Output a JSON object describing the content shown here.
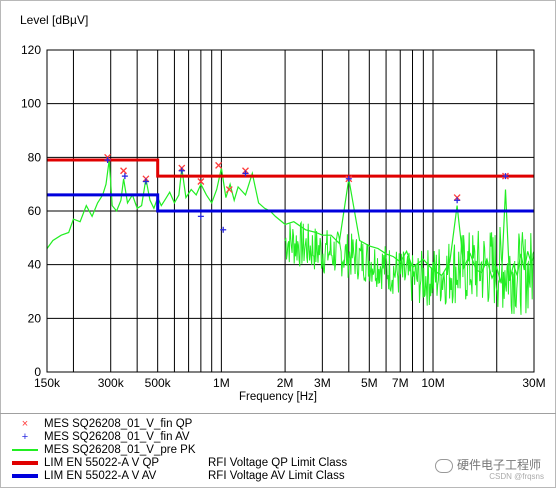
{
  "chart_data": {
    "type": "line",
    "ylabel": "Level [dBµV]",
    "xlabel": "Frequency [Hz]",
    "x_scale": "log",
    "xlim": [
      150000,
      30000000
    ],
    "ylim": [
      0,
      120
    ],
    "yticks": [
      0,
      20,
      40,
      60,
      80,
      100,
      120
    ],
    "xticks": [
      {
        "value": 150000,
        "label": "150k"
      },
      {
        "value": 300000,
        "label": "300k"
      },
      {
        "value": 500000,
        "label": "500k"
      },
      {
        "value": 1000000,
        "label": "1M"
      },
      {
        "value": 2000000,
        "label": "2M"
      },
      {
        "value": 3000000,
        "label": "3M"
      },
      {
        "value": 5000000,
        "label": "5M"
      },
      {
        "value": 7000000,
        "label": "7M"
      },
      {
        "value": 10000000,
        "label": "10M"
      },
      {
        "value": 30000000,
        "label": "30M"
      }
    ],
    "minor_gridlines": [
      200000,
      400000,
      600000,
      700000,
      800000,
      900000,
      4000000,
      6000000,
      8000000,
      9000000,
      20000000
    ],
    "grid": true,
    "series": [
      {
        "name": "MES  SQ26208_01_V_fin QP",
        "kind": "markers",
        "marker": "x",
        "color": "#ff3b3b",
        "x": [
          290000,
          345000,
          440000,
          650000,
          800000,
          970000,
          1090000,
          1300000,
          4000000,
          13000000,
          22000000
        ],
        "y": [
          80,
          75,
          72,
          76,
          71,
          77,
          68,
          75,
          72,
          65,
          73
        ]
      },
      {
        "name": "MES  SQ26208_01_V_fin AV",
        "kind": "markers",
        "marker": "+",
        "color": "#2828e0",
        "x": [
          290000,
          350000,
          440000,
          650000,
          800000,
          1020000,
          1300000,
          4000000,
          13000000,
          22000000
        ],
        "y": [
          79,
          73,
          71,
          75,
          58,
          53,
          74,
          72,
          64,
          73
        ]
      },
      {
        "name": "MES  SQ26208_01_V_pre PK",
        "kind": "line",
        "color": "#22ee22",
        "x": [
          150000,
          160000,
          175000,
          190000,
          200000,
          215000,
          230000,
          245000,
          260000,
          275000,
          285000,
          295000,
          305000,
          320000,
          335000,
          345000,
          360000,
          380000,
          400000,
          420000,
          440000,
          460000,
          480000,
          500000,
          520000,
          540000,
          570000,
          600000,
          630000,
          650000,
          680000,
          720000,
          760000,
          800000,
          850000,
          900000,
          950000,
          1000000,
          1050000,
          1100000,
          1150000,
          1200000,
          1300000,
          1400000,
          1500000,
          1600000,
          1700000,
          1800000,
          2000000,
          2200000,
          2500000,
          2800000,
          3000000,
          3300000,
          3600000,
          4000000,
          4500000,
          5000000,
          5500000,
          6000000,
          6500000,
          7000000,
          7500000,
          8000000,
          9000000,
          10000000,
          11000000,
          12000000,
          13000000,
          14000000,
          15000000,
          16000000,
          17000000,
          18000000,
          19000000,
          20000000,
          21000000,
          22000000,
          23000000,
          24000000,
          25000000,
          26000000,
          27000000,
          28000000,
          29000000,
          30000000
        ],
        "y": [
          46,
          49,
          51,
          52,
          57,
          56,
          62,
          58,
          63,
          66,
          70,
          79,
          62,
          60,
          64,
          72,
          63,
          66,
          61,
          62,
          72,
          64,
          61,
          65,
          62,
          64,
          67,
          63,
          66,
          76,
          65,
          68,
          66,
          70,
          66,
          63,
          68,
          76,
          65,
          70,
          64,
          69,
          66,
          74,
          63,
          61,
          60,
          58,
          55,
          56,
          53,
          52,
          51,
          51,
          48,
          72,
          49,
          47,
          46,
          44,
          43,
          41,
          45,
          39,
          42,
          38,
          36,
          41,
          62,
          39,
          44,
          38,
          37,
          42,
          35,
          39,
          33,
          68,
          34,
          40,
          36,
          44,
          38,
          45,
          41,
          43
        ]
      },
      {
        "name": "LIM  EN 55022-A V QP",
        "description": "RFI Voltage QP Limit Class",
        "kind": "step",
        "color": "#e00000",
        "x": [
          150000,
          500000,
          500000,
          30000000
        ],
        "y": [
          79,
          79,
          73,
          73
        ]
      },
      {
        "name": "LIM  EN 55022-A V AV",
        "description": "RFI Voltage AV Limit Class",
        "kind": "step",
        "color": "#0000dd",
        "x": [
          150000,
          500000,
          500000,
          30000000
        ],
        "y": [
          66,
          66,
          60,
          60
        ]
      }
    ],
    "noise_band": [
      {
        "x": 2000000,
        "lo": 40,
        "hi": 58
      },
      {
        "x": 3000000,
        "lo": 36,
        "hi": 54
      },
      {
        "x": 4000000,
        "lo": 35,
        "hi": 52
      },
      {
        "x": 5000000,
        "lo": 33,
        "hi": 50
      },
      {
        "x": 6000000,
        "lo": 30,
        "hi": 48
      },
      {
        "x": 7000000,
        "lo": 27,
        "hi": 46
      },
      {
        "x": 8000000,
        "lo": 25,
        "hi": 44
      },
      {
        "x": 10000000,
        "lo": 24,
        "hi": 47
      },
      {
        "x": 13000000,
        "lo": 25,
        "hi": 52
      },
      {
        "x": 17000000,
        "lo": 24,
        "hi": 54
      },
      {
        "x": 22000000,
        "lo": 22,
        "hi": 55
      },
      {
        "x": 27000000,
        "lo": 21,
        "hi": 52
      },
      {
        "x": 30000000,
        "lo": 23,
        "hi": 54
      }
    ]
  },
  "legend": [
    {
      "symbol": "x",
      "color": "#ff3b3b",
      "text": "MES  SQ26208_01_V_fin QP",
      "desc": ""
    },
    {
      "symbol": "+",
      "color": "#2828e0",
      "text": "MES  SQ26208_01_V_fin AV",
      "desc": ""
    },
    {
      "symbol": "line",
      "color": "#22ee22",
      "text": "MES  SQ26208_01_V_pre PK",
      "desc": ""
    },
    {
      "symbol": "thick",
      "color": "#e00000",
      "text": "LIM  EN 55022-A V QP",
      "desc": "RFI Voltage QP Limit Class"
    },
    {
      "symbol": "thick",
      "color": "#0000dd",
      "text": "LIM  EN 55022-A V AV",
      "desc": "RFI Voltage AV Limit Class"
    }
  ],
  "watermark": {
    "text": "硬件电子工程师",
    "csdn": "CSDN @frqsns"
  }
}
